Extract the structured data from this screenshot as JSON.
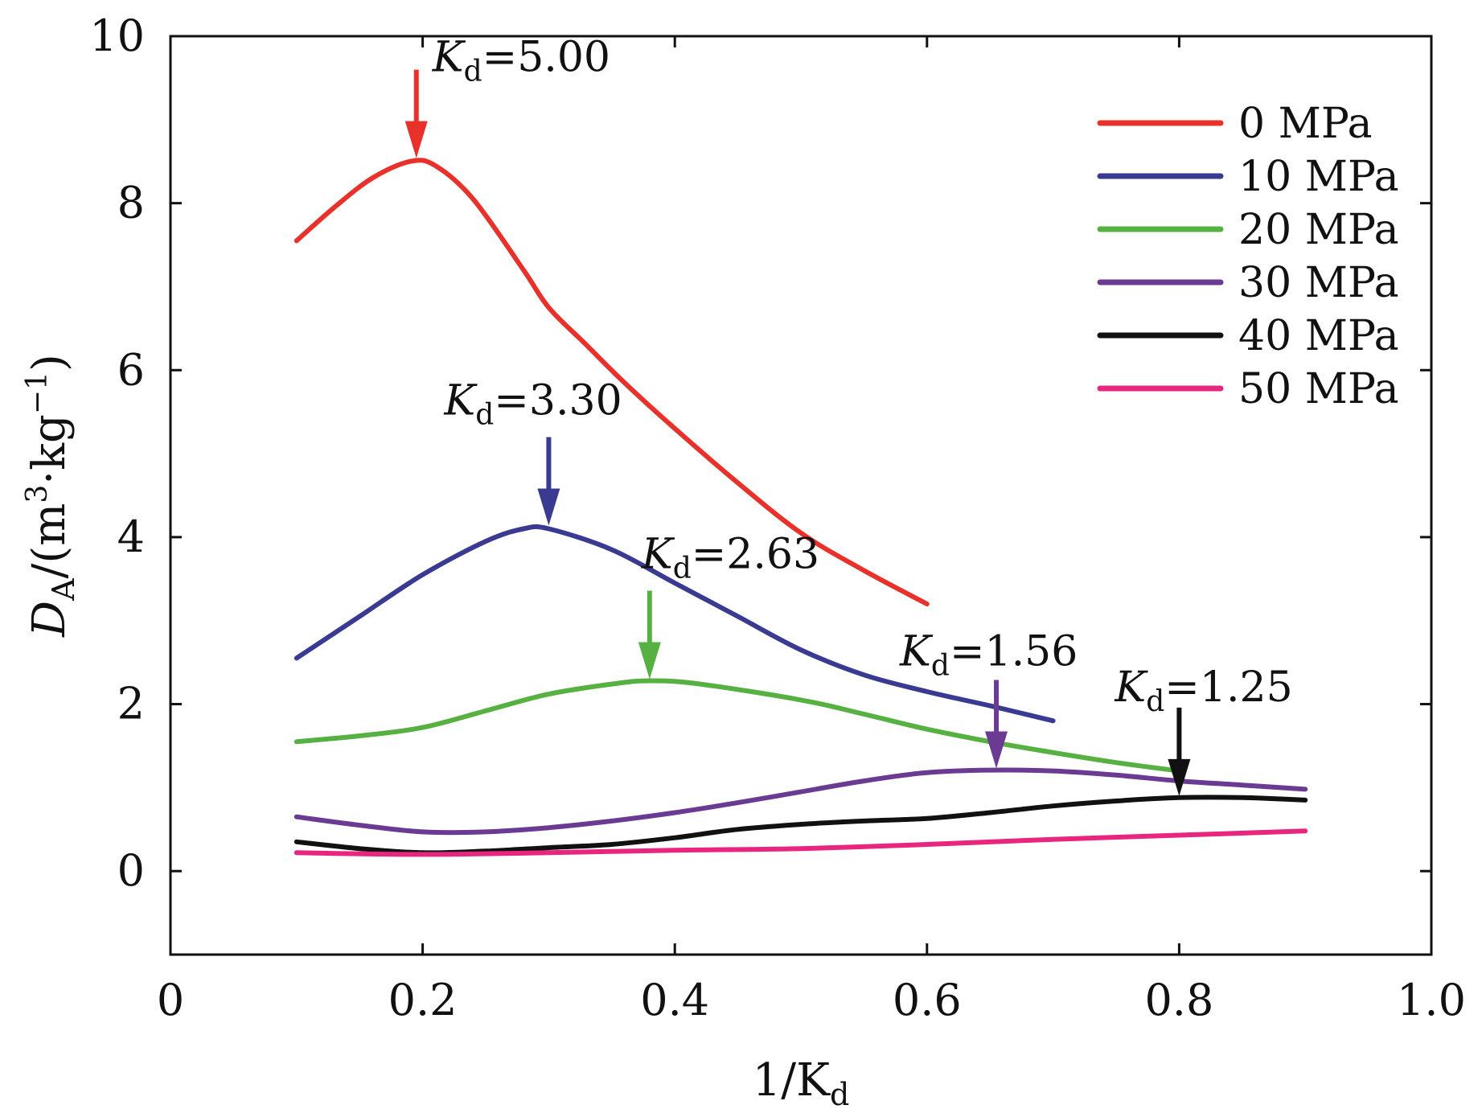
{
  "chart_data": {
    "type": "line",
    "title": "",
    "xlabel": {
      "main": "1/K",
      "sub": "d"
    },
    "ylabel": {
      "main": "D",
      "sub": "A",
      "rest": "/(m",
      "sup1": "3",
      "mid": "·kg",
      "sup2": "−1",
      "end": ")"
    },
    "xlim": [
      0,
      1.0
    ],
    "ylim": [
      -1,
      10
    ],
    "xticks": [
      0,
      0.2,
      0.4,
      0.6,
      0.8,
      1.0
    ],
    "xtick_labels": [
      "0",
      "0.2",
      "0.4",
      "0.6",
      "0.8",
      "1.0"
    ],
    "yticks": [
      0,
      2,
      4,
      6,
      8,
      10
    ],
    "ytick_labels": [
      "0",
      "2",
      "4",
      "6",
      "8",
      "10"
    ],
    "grid": false,
    "legend_position": "top-right",
    "series": [
      {
        "name": "0 MPa",
        "color": "#e8312a",
        "x": [
          0.1,
          0.13,
          0.16,
          0.19,
          0.21,
          0.24,
          0.28,
          0.3,
          0.33,
          0.36,
          0.4,
          0.45,
          0.5,
          0.55,
          0.6
        ],
        "y": [
          7.55,
          7.95,
          8.3,
          8.5,
          8.45,
          8.05,
          7.2,
          6.75,
          6.3,
          5.85,
          5.3,
          4.65,
          4.05,
          3.6,
          3.2
        ]
      },
      {
        "name": "10 MPa",
        "color": "#3a3a92",
        "x": [
          0.1,
          0.15,
          0.2,
          0.25,
          0.28,
          0.3,
          0.35,
          0.4,
          0.45,
          0.5,
          0.55,
          0.6,
          0.65,
          0.7
        ],
        "y": [
          2.55,
          3.05,
          3.55,
          3.95,
          4.1,
          4.1,
          3.85,
          3.45,
          3.05,
          2.65,
          2.35,
          2.15,
          1.98,
          1.8
        ]
      },
      {
        "name": "20 MPa",
        "color": "#56b142",
        "x": [
          0.1,
          0.15,
          0.2,
          0.25,
          0.3,
          0.35,
          0.38,
          0.42,
          0.5,
          0.55,
          0.6,
          0.65,
          0.7,
          0.75,
          0.8
        ],
        "y": [
          1.55,
          1.62,
          1.72,
          1.92,
          2.12,
          2.24,
          2.28,
          2.24,
          2.05,
          1.88,
          1.7,
          1.55,
          1.42,
          1.3,
          1.2
        ]
      },
      {
        "name": "30 MPa",
        "color": "#6b3a92",
        "x": [
          0.1,
          0.15,
          0.2,
          0.25,
          0.3,
          0.35,
          0.4,
          0.45,
          0.5,
          0.55,
          0.6,
          0.65,
          0.7,
          0.75,
          0.8,
          0.85,
          0.9
        ],
        "y": [
          0.65,
          0.55,
          0.47,
          0.47,
          0.52,
          0.6,
          0.7,
          0.82,
          0.95,
          1.08,
          1.18,
          1.21,
          1.2,
          1.15,
          1.08,
          1.03,
          0.98
        ]
      },
      {
        "name": "40 MPa",
        "color": "#111111",
        "x": [
          0.1,
          0.15,
          0.2,
          0.25,
          0.3,
          0.35,
          0.4,
          0.45,
          0.5,
          0.55,
          0.6,
          0.65,
          0.7,
          0.75,
          0.8,
          0.85,
          0.9
        ],
        "y": [
          0.35,
          0.27,
          0.22,
          0.24,
          0.28,
          0.32,
          0.4,
          0.5,
          0.56,
          0.6,
          0.63,
          0.7,
          0.78,
          0.84,
          0.88,
          0.88,
          0.85
        ]
      },
      {
        "name": "50 MPa",
        "color": "#e8267f",
        "x": [
          0.1,
          0.2,
          0.3,
          0.4,
          0.5,
          0.6,
          0.7,
          0.8,
          0.9
        ],
        "y": [
          0.22,
          0.2,
          0.22,
          0.25,
          0.27,
          0.32,
          0.38,
          0.43,
          0.48
        ]
      }
    ],
    "annotations": [
      {
        "label": "K",
        "sub": "d",
        "value": "=5.00",
        "x": 0.195,
        "y": 8.52,
        "color": "#e8312a"
      },
      {
        "label": "K",
        "sub": "d",
        "value": "=3.30",
        "x": 0.3,
        "y": 4.12,
        "color": "#3a3a92"
      },
      {
        "label": "K",
        "sub": "d",
        "value": "=2.63",
        "x": 0.38,
        "y": 2.28,
        "color": "#56b142"
      },
      {
        "label": "K",
        "sub": "d",
        "value": "=1.56",
        "x": 0.655,
        "y": 1.21,
        "color": "#6b3a92"
      },
      {
        "label": "K",
        "sub": "d",
        "value": "=1.25",
        "x": 0.8,
        "y": 0.88,
        "color": "#111111"
      }
    ]
  }
}
